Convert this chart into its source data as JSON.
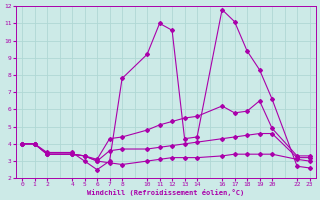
{
  "xlabel": "Windchill (Refroidissement éolien,°C)",
  "bg_color": "#cceae7",
  "grid_color": "#b0d8d4",
  "line_color": "#aa00aa",
  "hours": [
    0,
    1,
    2,
    4,
    5,
    6,
    7,
    8,
    10,
    11,
    12,
    13,
    14,
    16,
    17,
    18,
    19,
    20,
    22,
    23
  ],
  "line1_y": [
    4.0,
    4.0,
    3.5,
    3.5,
    3.0,
    2.5,
    3.0,
    7.8,
    9.2,
    11.0,
    10.6,
    4.3,
    4.4,
    11.8,
    11.1,
    9.4,
    8.3,
    6.6,
    2.7,
    2.6
  ],
  "line2_y": [
    4.0,
    4.0,
    3.4,
    3.4,
    3.3,
    3.1,
    4.3,
    4.4,
    4.8,
    5.1,
    5.3,
    5.5,
    5.6,
    6.2,
    5.8,
    5.9,
    6.5,
    4.9,
    3.3,
    3.3
  ],
  "line3_y": [
    4.0,
    4.0,
    3.4,
    3.4,
    3.3,
    3.0,
    3.6,
    3.7,
    3.7,
    3.8,
    3.9,
    4.0,
    4.1,
    4.3,
    4.4,
    4.5,
    4.6,
    4.6,
    3.2,
    3.2
  ],
  "line4_y": [
    4.0,
    4.0,
    3.4,
    3.4,
    3.3,
    3.0,
    2.9,
    2.8,
    3.0,
    3.1,
    3.2,
    3.2,
    3.2,
    3.3,
    3.4,
    3.4,
    3.4,
    3.4,
    3.1,
    3.0
  ],
  "ylim": [
    2,
    12
  ],
  "yticks": [
    2,
    3,
    4,
    5,
    6,
    7,
    8,
    9,
    10,
    11,
    12
  ],
  "xlim": [
    -0.5,
    23.5
  ]
}
